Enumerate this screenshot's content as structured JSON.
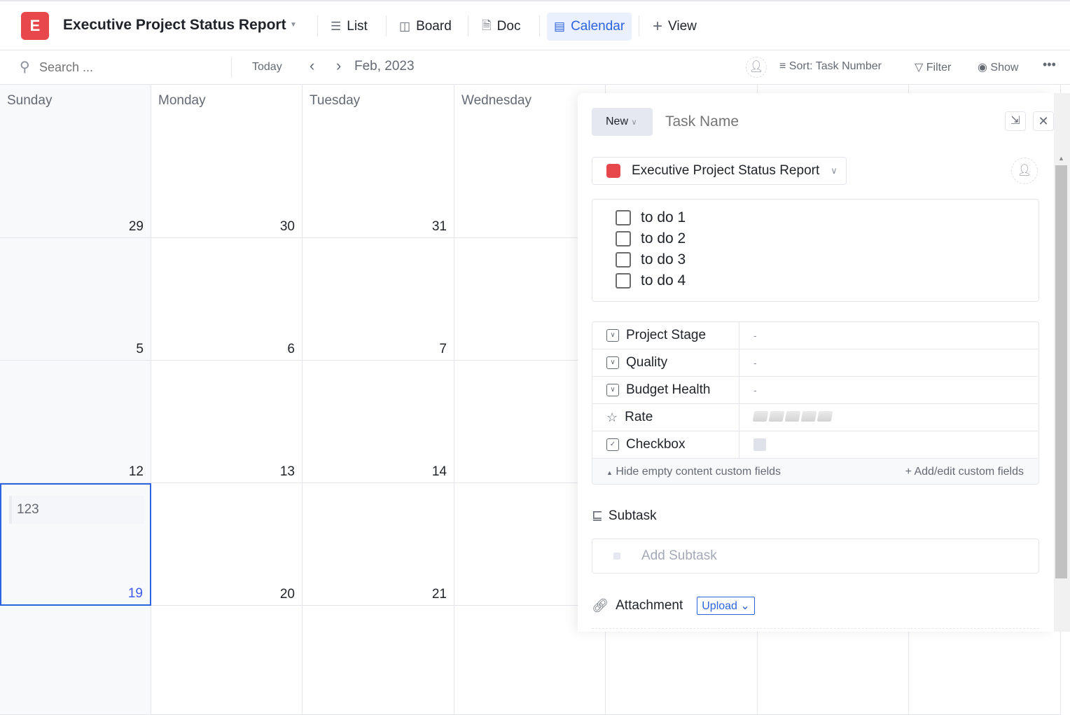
{
  "header": {
    "logo_letter": "E",
    "title": "Executive Project Status Report",
    "tabs": [
      {
        "label": "List",
        "icon": "list-icon"
      },
      {
        "label": "Board",
        "icon": "board-icon"
      },
      {
        "label": "Doc",
        "icon": "doc-icon"
      },
      {
        "label": "Calendar",
        "icon": "calendar-icon",
        "active": true
      },
      {
        "label": "View",
        "icon": "plus-icon"
      }
    ]
  },
  "toolbar": {
    "search_placeholder": "Search ...",
    "today": "Today",
    "month": "Feb, 2023",
    "sort_label": "Sort:",
    "sort_value": "Task Number",
    "filter": "Filter",
    "show": "Show"
  },
  "calendar": {
    "day_names": [
      "Sunday",
      "Monday",
      "Tuesday",
      "Wednesday",
      "",
      "",
      ""
    ],
    "weeks": [
      [
        "29",
        "30",
        "31",
        "",
        "",
        "",
        ""
      ],
      [
        "5",
        "6",
        "7",
        "",
        "",
        "",
        ""
      ],
      [
        "12",
        "13",
        "14",
        "",
        "",
        "",
        ""
      ],
      [
        "19",
        "20",
        "21",
        "",
        "",
        "",
        ""
      ],
      [
        "",
        "",
        "",
        "",
        "",
        "",
        ""
      ]
    ],
    "selected_day": "19",
    "event": "123"
  },
  "panel": {
    "status": "New",
    "task_name_placeholder": "Task Name",
    "project": "Executive Project Status Report",
    "project_color": "#e8484b",
    "todos": [
      "to do 1",
      "to do 2",
      "to do 3",
      "to do 4"
    ],
    "fields": [
      {
        "label": "Project Stage",
        "value": "-",
        "icon": "dropdown-field-icon"
      },
      {
        "label": "Quality",
        "value": "-",
        "icon": "dropdown-field-icon"
      },
      {
        "label": "Budget Health",
        "value": "-",
        "icon": "dropdown-field-icon"
      },
      {
        "label": "Rate",
        "value": "",
        "rating": 0,
        "max": 5,
        "icon": "star-icon"
      },
      {
        "label": "Checkbox",
        "value": "",
        "checked": false,
        "icon": "checkbox-field-icon"
      }
    ],
    "hide_empty": "Hide empty content custom fields",
    "add_edit": "Add/edit custom fields",
    "subtask_title": "Subtask",
    "add_subtask": "Add Subtask",
    "attachment_title": "Attachment",
    "upload": "Upload"
  },
  "colors": {
    "accent": "#2b63e0",
    "brand": "#e8484b"
  }
}
